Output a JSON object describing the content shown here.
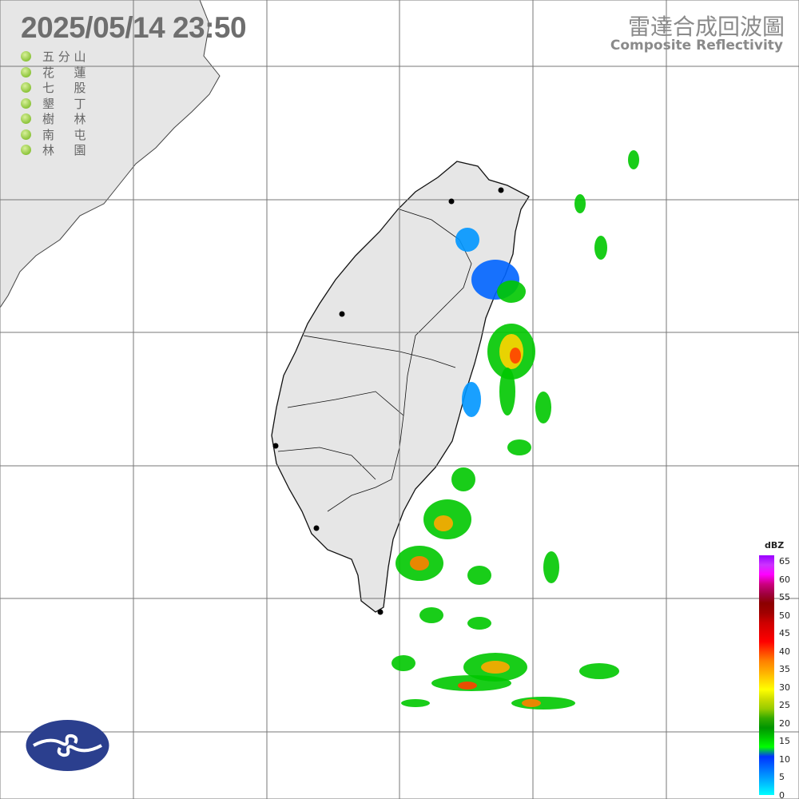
{
  "header": {
    "timestamp": "2025/05/14  23:50",
    "title_zh": "雷達合成回波圖",
    "title_en": "Composite Reflectivity"
  },
  "radar_sites": [
    "五 分 山",
    "花 　 蓮",
    "七 　 股",
    "墾 　 丁",
    "樹 　 林",
    "南 　 屯",
    "林 　 園"
  ],
  "legend": {
    "unit": "dBZ",
    "ticks": [
      "65",
      "60",
      "55",
      "50",
      "45",
      "40",
      "35",
      "30",
      "25",
      "20",
      "15",
      "10",
      "5",
      "0"
    ],
    "colors": [
      "#00ffff",
      "#00c8ff",
      "#0096ff",
      "#0064ff",
      "#0032ff",
      "#00ff00",
      "#00c800",
      "#009600",
      "#33aa00",
      "#99cc00",
      "#ccdd00",
      "#ffff00",
      "#ffd400",
      "#ffa800",
      "#ff7f00",
      "#ff4000",
      "#ff0000",
      "#e60000",
      "#cc0000",
      "#a00000",
      "#8c0000",
      "#a00040",
      "#cc0080",
      "#ff00ff",
      "#cc33ff",
      "#9900ff"
    ]
  },
  "logo": {
    "icon": "cwa-logo"
  }
}
